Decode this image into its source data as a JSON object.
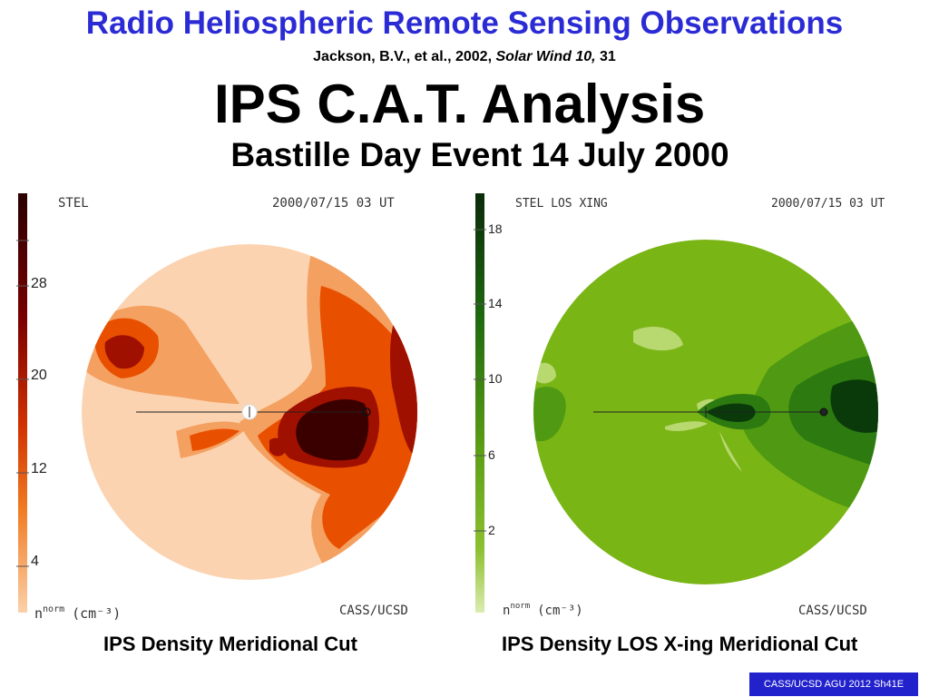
{
  "header": {
    "title": "Radio Heliospheric Remote Sensing Observations",
    "citation_authors": "Jackson, B.V., et al., 2002,",
    "citation_journal": "Solar Wind 10,",
    "citation_page": "31"
  },
  "main_title": "IPS C.A.T. Analysis",
  "subtitle": "Bastille Day Event 14 July 2000",
  "left_panel": {
    "label": "STEL",
    "timestamp": "2000/07/15 03 UT",
    "credit": "CASS/UCSD",
    "unit_label": "n",
    "unit_sup": "norm",
    "unit": "(cm⁻³)",
    "scale_ticks": [
      "28",
      "20",
      "12",
      "4"
    ],
    "caption": "IPS Density Meridional Cut",
    "colors": {
      "darkest": "#3a0000",
      "dark": "#a01000",
      "mid": "#e85000",
      "light": "#f4a060",
      "pale": "#fbd3b0"
    }
  },
  "right_panel": {
    "label": "STEL LOS XING",
    "timestamp": "2000/07/15 03 UT",
    "credit": "CASS/UCSD",
    "unit_label": "n",
    "unit_sup": "norm",
    "unit": "(cm⁻³)",
    "scale_ticks": [
      "18",
      "14",
      "10",
      "6",
      "2"
    ],
    "caption": "IPS Density LOS X-ing Meridional Cut",
    "colors": {
      "darkest": "#0a3a0a",
      "dark": "#2c7a10",
      "mid": "#4f9a12",
      "base": "#7ab516",
      "light": "#b8d870"
    }
  },
  "footer": "CASS/UCSD AGU 2012 Sh41E"
}
